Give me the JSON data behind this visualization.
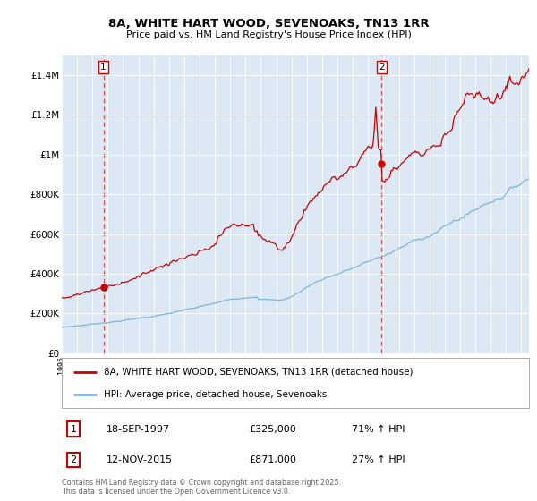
{
  "title_line1": "8A, WHITE HART WOOD, SEVENOAKS, TN13 1RR",
  "title_line2": "Price paid vs. HM Land Registry's House Price Index (HPI)",
  "bg_color": "#dce9f5",
  "red_line_color": "#cc0000",
  "blue_line_color": "#7fb4d8",
  "dashed_line_color": "#e05050",
  "purchase1_date_num": 1997.72,
  "purchase1_price": 325000,
  "purchase2_date_num": 2015.87,
  "purchase2_price": 871000,
  "legend_label_red": "8A, WHITE HART WOOD, SEVENOAKS, TN13 1RR (detached house)",
  "legend_label_blue": "HPI: Average price, detached house, Sevenoaks",
  "annotation1_label": "1",
  "annotation2_label": "2",
  "table_row1": [
    "1",
    "18-SEP-1997",
    "£325,000",
    "71% ↑ HPI"
  ],
  "table_row2": [
    "2",
    "12-NOV-2015",
    "£871,000",
    "27% ↑ HPI"
  ],
  "footer": "Contains HM Land Registry data © Crown copyright and database right 2025.\nThis data is licensed under the Open Government Licence v3.0.",
  "ylim_max": 1500000,
  "yticks": [
    0,
    200000,
    400000,
    600000,
    800000,
    1000000,
    1200000,
    1400000
  ],
  "ytick_labels": [
    "£0",
    "£200K",
    "£400K",
    "£600K",
    "£800K",
    "£1M",
    "£1.2M",
    "£1.4M"
  ],
  "xmin": 1995.0,
  "xmax": 2025.5
}
